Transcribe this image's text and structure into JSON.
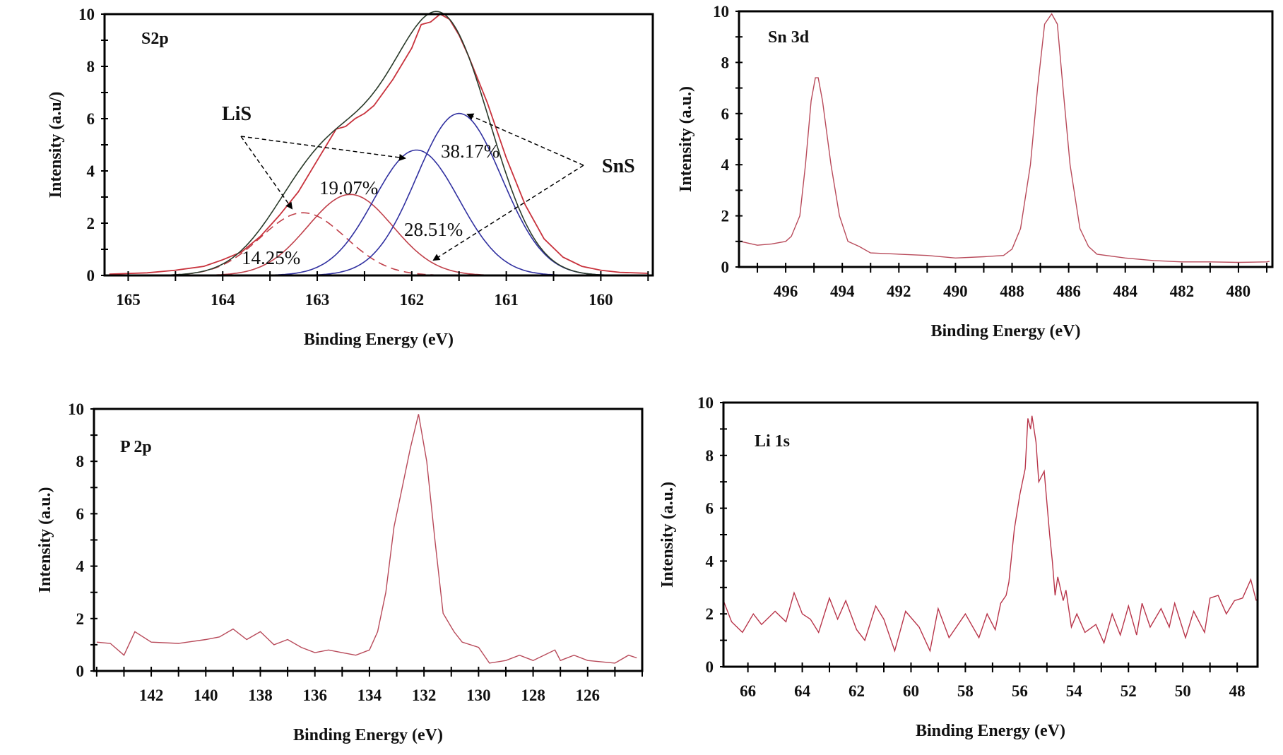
{
  "chart_data": [
    {
      "type": "line",
      "panel_label": "S2p",
      "xlabel": "Binding Energy (eV)",
      "ylabel": "Intensity (a.u/)",
      "xlim": [
        165.25,
        159.45
      ],
      "ylim": [
        0,
        10
      ],
      "x_reversed": true,
      "xticks": [
        165,
        164,
        163,
        162,
        161,
        160
      ],
      "yticks": [
        0,
        2,
        4,
        6,
        8,
        10
      ],
      "grid": false,
      "colors": {
        "experimental": "#c8323c",
        "envelope": "#2a3a2a",
        "lis": "#c0404a",
        "sns": "#3030a0"
      },
      "experimental": {
        "x": [
          165.2,
          164.8,
          164.5,
          164.2,
          164.0,
          163.8,
          163.6,
          163.4,
          163.2,
          163.0,
          162.9,
          162.8,
          162.7,
          162.6,
          162.5,
          162.4,
          162.2,
          162.0,
          161.9,
          161.8,
          161.7,
          161.6,
          161.5,
          161.4,
          161.2,
          161.0,
          160.8,
          160.6,
          160.4,
          160.2,
          160.0,
          159.8,
          159.5
        ],
        "y": [
          0.05,
          0.1,
          0.2,
          0.35,
          0.6,
          0.9,
          1.5,
          2.3,
          3.2,
          4.4,
          5.0,
          5.6,
          5.7,
          6.0,
          6.2,
          6.5,
          7.5,
          8.7,
          9.6,
          9.7,
          10.0,
          9.8,
          9.2,
          8.4,
          6.6,
          4.5,
          2.7,
          1.4,
          0.7,
          0.35,
          0.2,
          0.12,
          0.08
        ]
      },
      "components": [
        {
          "group": "LiS",
          "label": "14.25%",
          "center": 163.15,
          "height": 2.4,
          "fwhm": 1.06,
          "style": "dashed"
        },
        {
          "group": "LiS",
          "label": "19.07%",
          "center": 162.65,
          "height": 3.1,
          "fwhm": 1.06,
          "style": "solid"
        },
        {
          "group": "SnS",
          "label": "28.51%",
          "center": 161.95,
          "height": 4.8,
          "fwhm": 1.06,
          "style": "solid"
        },
        {
          "group": "SnS",
          "label": "38.17%",
          "center": 161.5,
          "height": 6.2,
          "fwhm": 1.06,
          "style": "solid"
        }
      ],
      "annotations": {
        "lis": "LiS",
        "sns": "SnS"
      }
    },
    {
      "type": "line",
      "panel_label": "Sn 3d",
      "xlabel": "Binding Energy (eV)",
      "ylabel": "Intensity (a.u.)",
      "xlim": [
        497.65,
        478.8
      ],
      "ylim": [
        0,
        10
      ],
      "x_reversed": true,
      "xticks": [
        496,
        494,
        492,
        490,
        488,
        486,
        484,
        482,
        480
      ],
      "yticks": [
        0,
        2,
        4,
        6,
        8,
        10
      ],
      "grid": false,
      "colors": {
        "line": "#b84a5a"
      },
      "x": [
        497.6,
        497.0,
        496.5,
        496.0,
        495.8,
        495.5,
        495.3,
        495.1,
        494.95,
        494.85,
        494.7,
        494.4,
        494.1,
        493.8,
        493.4,
        493.0,
        492.0,
        491.0,
        490.0,
        489.0,
        488.3,
        488.0,
        487.7,
        487.35,
        487.1,
        486.85,
        486.6,
        486.4,
        486.2,
        485.95,
        485.6,
        485.3,
        485.0,
        484.0,
        483.0,
        482.0,
        481.0,
        480.0,
        479.0,
        478.9
      ],
      "y": [
        1.0,
        0.85,
        0.9,
        1.0,
        1.2,
        2.0,
        4.0,
        6.5,
        7.4,
        7.4,
        6.5,
        4.0,
        2.0,
        1.0,
        0.8,
        0.55,
        0.5,
        0.45,
        0.35,
        0.4,
        0.45,
        0.7,
        1.5,
        4.0,
        7.0,
        9.5,
        9.9,
        9.5,
        7.0,
        4.0,
        1.5,
        0.8,
        0.5,
        0.35,
        0.25,
        0.2,
        0.2,
        0.18,
        0.2,
        0.22
      ]
    },
    {
      "type": "line",
      "panel_label": "P 2p",
      "xlabel": "Binding Energy (eV)",
      "ylabel": "Intensity (a.u.)",
      "xlim": [
        144.1,
        124.0
      ],
      "ylim": [
        0,
        10
      ],
      "x_reversed": true,
      "xticks": [
        142,
        140,
        138,
        136,
        134,
        132,
        130,
        128,
        126
      ],
      "yticks": [
        0,
        2,
        4,
        6,
        8,
        10
      ],
      "grid": false,
      "colors": {
        "line": "#b84a5a"
      },
      "x": [
        144.0,
        143.5,
        143.0,
        142.6,
        142.0,
        141.0,
        140.0,
        139.5,
        139.0,
        138.5,
        138.0,
        137.5,
        137.0,
        136.5,
        136.0,
        135.5,
        135.0,
        134.5,
        134.0,
        133.7,
        133.4,
        133.1,
        132.8,
        132.5,
        132.2,
        131.9,
        131.6,
        131.3,
        130.9,
        130.6,
        130.0,
        129.6,
        129.0,
        128.5,
        128.0,
        127.2,
        127.0,
        126.5,
        126.0,
        125.0,
        124.5,
        124.2
      ],
      "y": [
        1.1,
        1.05,
        0.6,
        1.5,
        1.1,
        1.05,
        1.2,
        1.3,
        1.6,
        1.2,
        1.5,
        1.0,
        1.2,
        0.9,
        0.7,
        0.8,
        0.7,
        0.6,
        0.8,
        1.5,
        3.0,
        5.5,
        7.0,
        8.5,
        9.8,
        8.0,
        5.0,
        2.2,
        1.5,
        1.1,
        0.9,
        0.3,
        0.4,
        0.6,
        0.4,
        0.8,
        0.4,
        0.6,
        0.4,
        0.3,
        0.6,
        0.5
      ]
    },
    {
      "type": "line",
      "panel_label": "Li 1s",
      "xlabel": "Binding Energy (eV)",
      "ylabel": "Intensity (a.u.)",
      "xlim": [
        66.9,
        47.25
      ],
      "ylim": [
        0,
        10
      ],
      "x_reversed": true,
      "xticks": [
        66,
        64,
        62,
        60,
        58,
        56,
        54,
        52,
        50,
        48
      ],
      "yticks": [
        0,
        2,
        4,
        6,
        8,
        10
      ],
      "grid": false,
      "colors": {
        "line": "#b8354a"
      },
      "x": [
        66.9,
        66.6,
        66.2,
        65.8,
        65.5,
        65.0,
        64.6,
        64.3,
        64.0,
        63.7,
        63.4,
        63.0,
        62.7,
        62.4,
        62.0,
        61.7,
        61.3,
        61.0,
        60.6,
        60.2,
        59.7,
        59.3,
        59.0,
        58.6,
        58.0,
        57.5,
        57.2,
        56.9,
        56.7,
        56.5,
        56.4,
        56.2,
        56.0,
        55.8,
        55.7,
        55.6,
        55.55,
        55.4,
        55.3,
        55.1,
        54.9,
        54.8,
        54.7,
        54.6,
        54.4,
        54.3,
        54.1,
        53.9,
        53.6,
        53.2,
        52.9,
        52.6,
        52.3,
        52.0,
        51.7,
        51.5,
        51.2,
        50.8,
        50.5,
        50.3,
        49.9,
        49.6,
        49.2,
        49.0,
        48.7,
        48.4,
        48.1,
        47.8,
        47.5,
        47.3
      ],
      "y": [
        2.5,
        1.7,
        1.3,
        2.0,
        1.6,
        2.1,
        1.7,
        2.8,
        2.0,
        1.8,
        1.3,
        2.6,
        1.8,
        2.5,
        1.4,
        1.0,
        2.3,
        1.8,
        0.6,
        2.1,
        1.5,
        0.6,
        2.2,
        1.1,
        2.0,
        1.1,
        2.0,
        1.4,
        2.4,
        2.7,
        3.2,
        5.2,
        6.5,
        7.5,
        9.4,
        9.0,
        9.5,
        8.5,
        7.0,
        7.4,
        5.0,
        4.0,
        2.7,
        3.4,
        2.5,
        2.9,
        1.5,
        2.0,
        1.3,
        1.6,
        0.9,
        2.0,
        1.2,
        2.3,
        1.2,
        2.4,
        1.5,
        2.2,
        1.5,
        2.4,
        1.1,
        2.1,
        1.3,
        2.6,
        2.7,
        2.0,
        2.5,
        2.6,
        3.3,
        2.5
      ]
    }
  ]
}
